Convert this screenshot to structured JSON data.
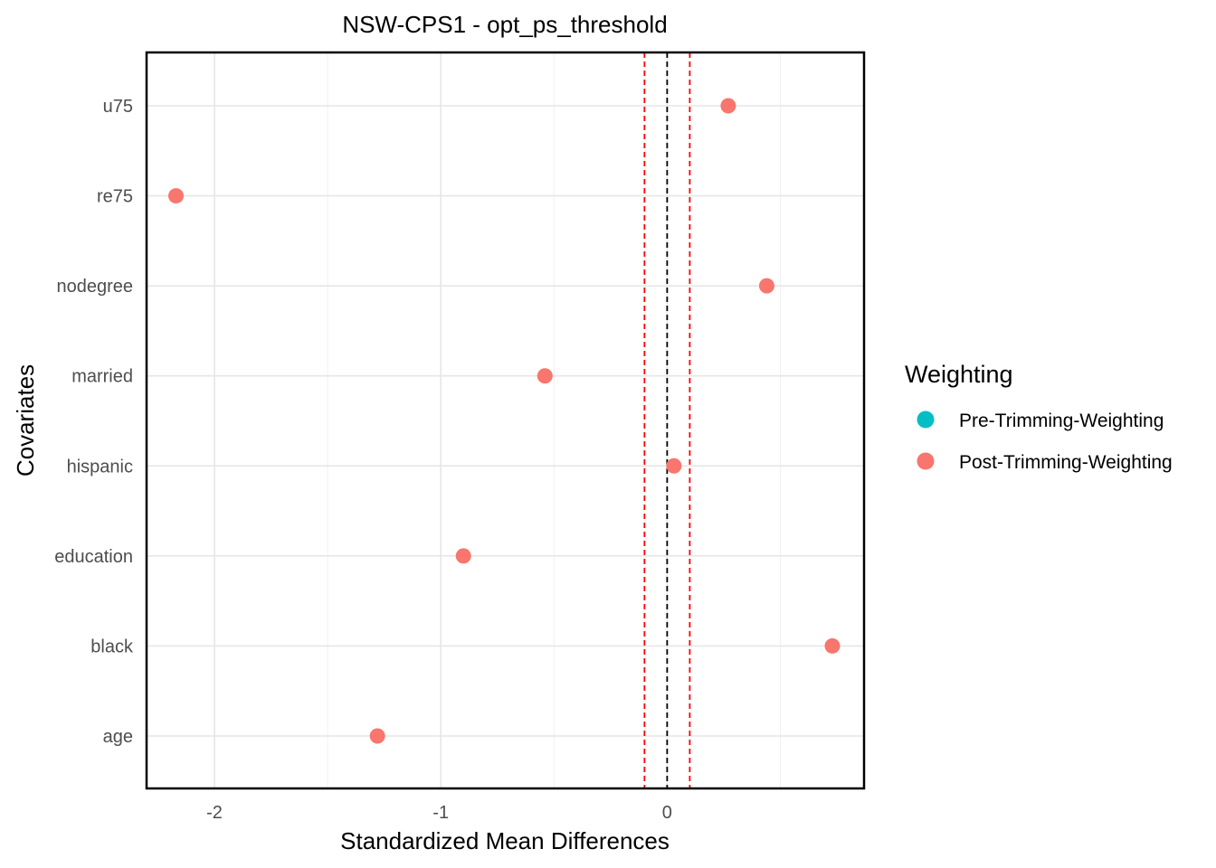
{
  "chart_data": {
    "type": "scatter",
    "title": "NSW-CPS1 - opt_ps_threshold",
    "xlabel": "Standardized Mean Differences",
    "ylabel": "Covariates",
    "xlim": [
      -2.3,
      0.87
    ],
    "x_ticks": [
      -2,
      -1,
      0
    ],
    "x_tick_labels": [
      "-2",
      "-1",
      "0"
    ],
    "categories": [
      "age",
      "black",
      "education",
      "hispanic",
      "married",
      "nodegree",
      "re75",
      "u75"
    ],
    "grid": true,
    "reference_lines": [
      {
        "x": 0,
        "style": "dashed",
        "color": "#000000"
      },
      {
        "x": -0.1,
        "style": "dashed",
        "color": "#ff0000"
      },
      {
        "x": 0.1,
        "style": "dashed",
        "color": "#ff0000"
      }
    ],
    "legend": {
      "title": "Weighting",
      "placement": "right",
      "entries": [
        {
          "name": "Pre-Trimming-Weighting",
          "color": "#00BFC4"
        },
        {
          "name": "Post-Trimming-Weighting",
          "color": "#F8766D"
        }
      ]
    },
    "series": [
      {
        "name": "Pre-Trimming-Weighting",
        "color": "#00BFC4",
        "points": []
      },
      {
        "name": "Post-Trimming-Weighting",
        "color": "#F8766D",
        "points": [
          {
            "category": "age",
            "x": -1.28
          },
          {
            "category": "black",
            "x": 0.73
          },
          {
            "category": "education",
            "x": -0.9
          },
          {
            "category": "hispanic",
            "x": 0.03
          },
          {
            "category": "married",
            "x": -0.54
          },
          {
            "category": "nodegree",
            "x": 0.44
          },
          {
            "category": "re75",
            "x": -2.17
          },
          {
            "category": "u75",
            "x": 0.27
          }
        ]
      }
    ]
  }
}
